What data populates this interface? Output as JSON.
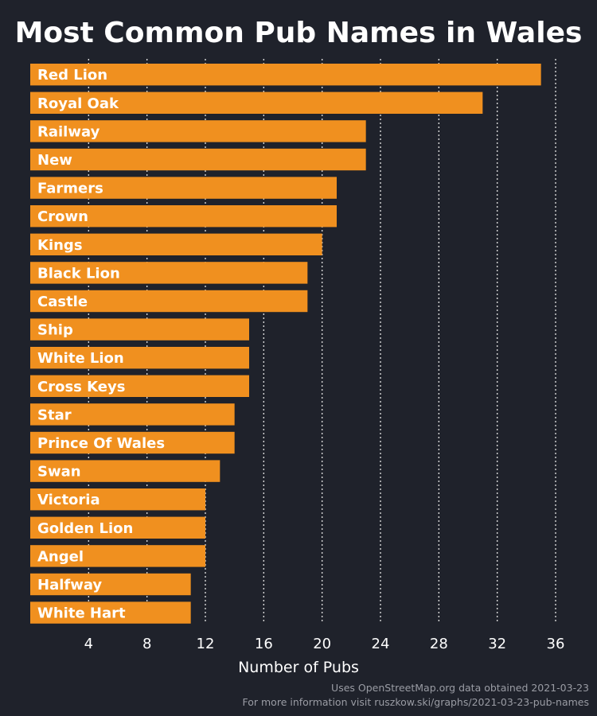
{
  "chart_data": {
    "type": "bar",
    "orientation": "horizontal",
    "title": "Most Common Pub Names in Wales",
    "xlabel": "Number of Pubs",
    "ylabel": "",
    "categories": [
      "Red Lion",
      "Royal Oak",
      "Railway",
      "New",
      "Farmers",
      "Crown",
      "Kings",
      "Black Lion",
      "Castle",
      "Ship",
      "White Lion",
      "Cross Keys",
      "Star",
      "Prince Of Wales",
      "Swan",
      "Victoria",
      "Golden Lion",
      "Angel",
      "Halfway",
      "White Hart"
    ],
    "values": [
      35,
      31,
      23,
      23,
      21,
      21,
      20,
      19,
      19,
      15,
      15,
      15,
      14,
      14,
      13,
      12,
      12,
      12,
      11,
      11
    ],
    "xticks": [
      4,
      8,
      12,
      16,
      20,
      24,
      28,
      32,
      36
    ],
    "xlim": [
      0,
      36
    ],
    "grid": "vertical dotted",
    "bar_color": "#f0901f",
    "background_color": "#1f222b",
    "caption_lines": [
      "Uses OpenStreetMap.org data obtained 2021-03-23",
      "For more information visit ruszkow.ski/graphs/2021-03-23-pub-names"
    ]
  }
}
